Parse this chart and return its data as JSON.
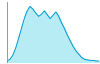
{
  "x": [
    0,
    1,
    2,
    3,
    4,
    5,
    6,
    7,
    8,
    9,
    10,
    11,
    12,
    13,
    14,
    15,
    16,
    17,
    18,
    19,
    20,
    21,
    22,
    23,
    24,
    25,
    26,
    27,
    28,
    29,
    30,
    31,
    32
  ],
  "y": [
    2,
    5,
    12,
    25,
    42,
    60,
    78,
    92,
    100,
    95,
    88,
    82,
    86,
    92,
    85,
    78,
    84,
    90,
    82,
    70,
    60,
    48,
    38,
    28,
    20,
    14,
    8,
    5,
    4,
    3,
    3,
    2,
    2
  ],
  "fill_color": "#b8ecf5",
  "line_color": "#0099cc",
  "background_color": "#ffffff",
  "ylim": [
    0,
    108
  ],
  "xlim": [
    0,
    32
  ]
}
